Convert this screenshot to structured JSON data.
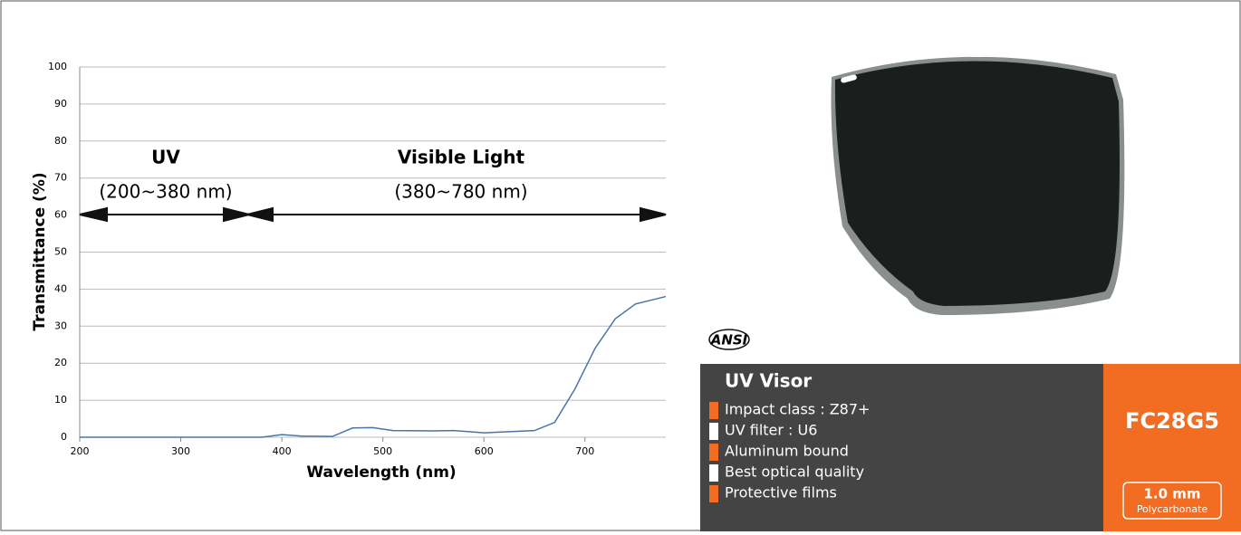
{
  "chart_data": {
    "type": "line",
    "xlabel": "Wavelength (nm)",
    "ylabel": "Transmittance (%)",
    "x": [
      200,
      380,
      400,
      420,
      450,
      470,
      490,
      510,
      550,
      570,
      600,
      650,
      670,
      690,
      710,
      730,
      750,
      780
    ],
    "values": [
      0,
      0,
      0.7,
      0.3,
      0.2,
      2.5,
      2.6,
      1.8,
      1.7,
      1.8,
      1.2,
      1.8,
      4,
      13,
      24,
      32,
      36,
      38
    ],
    "color": "#4a74a8",
    "xlim": [
      200,
      780
    ],
    "ylim": [
      0,
      100
    ],
    "xticks": [
      200,
      300,
      400,
      500,
      600,
      700
    ],
    "yticks": [
      0,
      10,
      20,
      30,
      40,
      50,
      60,
      70,
      80,
      90,
      100
    ],
    "grid": true,
    "annotations": [
      "UV",
      "(200~380 nm)",
      "Visible Light",
      "(380~780 nm)"
    ]
  },
  "product": {
    "logo": "ANSI",
    "name": "UV Visor",
    "features": [
      "Impact class : Z87+",
      "UV filter : U6",
      "Aluminum bound",
      "Best optical quality",
      "Protective films"
    ],
    "model": "FC28G5",
    "thickness": "1.0 mm",
    "material": "Polycarbonate"
  }
}
